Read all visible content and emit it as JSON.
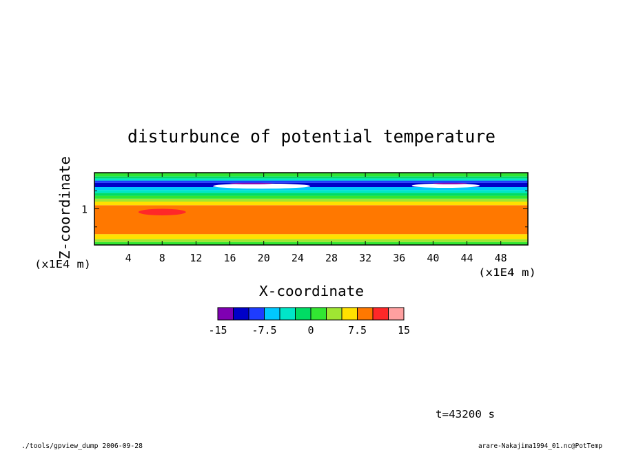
{
  "chart_data": {
    "type": "heatmap",
    "title": "disturbunce of potential temperature",
    "xlabel": "X-coordinate",
    "ylabel": "Z-coordinate",
    "x_unit": "(x1E4 m)",
    "y_unit": "(x1E4 m)",
    "x_ticks": [
      "4",
      "8",
      "12",
      "16",
      "20",
      "24",
      "28",
      "32",
      "36",
      "40",
      "44",
      "48"
    ],
    "x_tick_values": [
      4,
      8,
      12,
      16,
      20,
      24,
      28,
      32,
      36,
      40,
      44,
      48
    ],
    "y_ticks": [
      "1"
    ],
    "y_tick_values": [
      1
    ],
    "xlim": [
      0,
      51.2
    ],
    "ylim": [
      0,
      2.0
    ],
    "colorbar": {
      "levels": [
        -15,
        -12.5,
        -10,
        -7.5,
        -5,
        -2.5,
        0,
        2.5,
        5,
        7.5,
        10,
        12.5,
        15
      ],
      "colors": [
        "#7f00b2",
        "#0000c8",
        "#1e3cff",
        "#00c8ff",
        "#00e6c8",
        "#00dc64",
        "#32e632",
        "#a0e632",
        "#ffe100",
        "#ff7800",
        "#ff2828",
        "#ffa0a0"
      ],
      "tick_labels": [
        "-15",
        "-7.5",
        "0",
        "7.5",
        "15"
      ],
      "tick_values": [
        -15,
        -7.5,
        0,
        7.5,
        15
      ]
    },
    "bands": [
      {
        "z": [
          0.0,
          0.08
        ],
        "value": 1.2
      },
      {
        "z": [
          0.08,
          0.16
        ],
        "value": 3.5
      },
      {
        "z": [
          0.16,
          0.3
        ],
        "value": 6.0
      },
      {
        "z": [
          0.3,
          1.1
        ],
        "value": 8.5
      },
      {
        "z": [
          1.1,
          1.2
        ],
        "value": 6.0
      },
      {
        "z": [
          1.2,
          1.28
        ],
        "value": 3.5
      },
      {
        "z": [
          1.28,
          1.36
        ],
        "value": 1.2
      },
      {
        "z": [
          1.36,
          1.44
        ],
        "value": -1.2
      },
      {
        "z": [
          1.44,
          1.52
        ],
        "value": -3.8
      },
      {
        "z": [
          1.52,
          1.6
        ],
        "value": -6.2
      },
      {
        "z": [
          1.6,
          1.72
        ],
        "value": -11.2
      },
      {
        "z": [
          1.72,
          1.78
        ],
        "value": -8.8
      },
      {
        "z": [
          1.78,
          1.84
        ],
        "value": -3.8
      },
      {
        "z": [
          1.84,
          1.9
        ],
        "value": -1.2
      },
      {
        "z": [
          1.9,
          2.0
        ],
        "value": 1.2
      }
    ],
    "patches": [
      {
        "x": [
          5.2,
          10.8
        ],
        "z": [
          0.82,
          1.0
        ],
        "value": 11.0
      },
      {
        "x": [
          14.0,
          25.5
        ],
        "z": [
          1.56,
          1.7
        ],
        "value": -16.5
      },
      {
        "x": [
          37.5,
          45.5
        ],
        "z": [
          1.58,
          1.7
        ],
        "value": -16.5
      },
      {
        "x": [
          16.0,
          21.0
        ],
        "z": [
          1.68,
          1.72
        ],
        "value": -13.5
      },
      {
        "x": [
          40.0,
          44.0
        ],
        "z": [
          1.68,
          1.72
        ],
        "value": -13.5
      }
    ]
  },
  "annotations": {
    "time": "t=43200 s",
    "footer_left": "./tools/gpview_dump  2006-09-28",
    "footer_right": "arare-Nakajima1994_01.nc@PotTemp"
  }
}
